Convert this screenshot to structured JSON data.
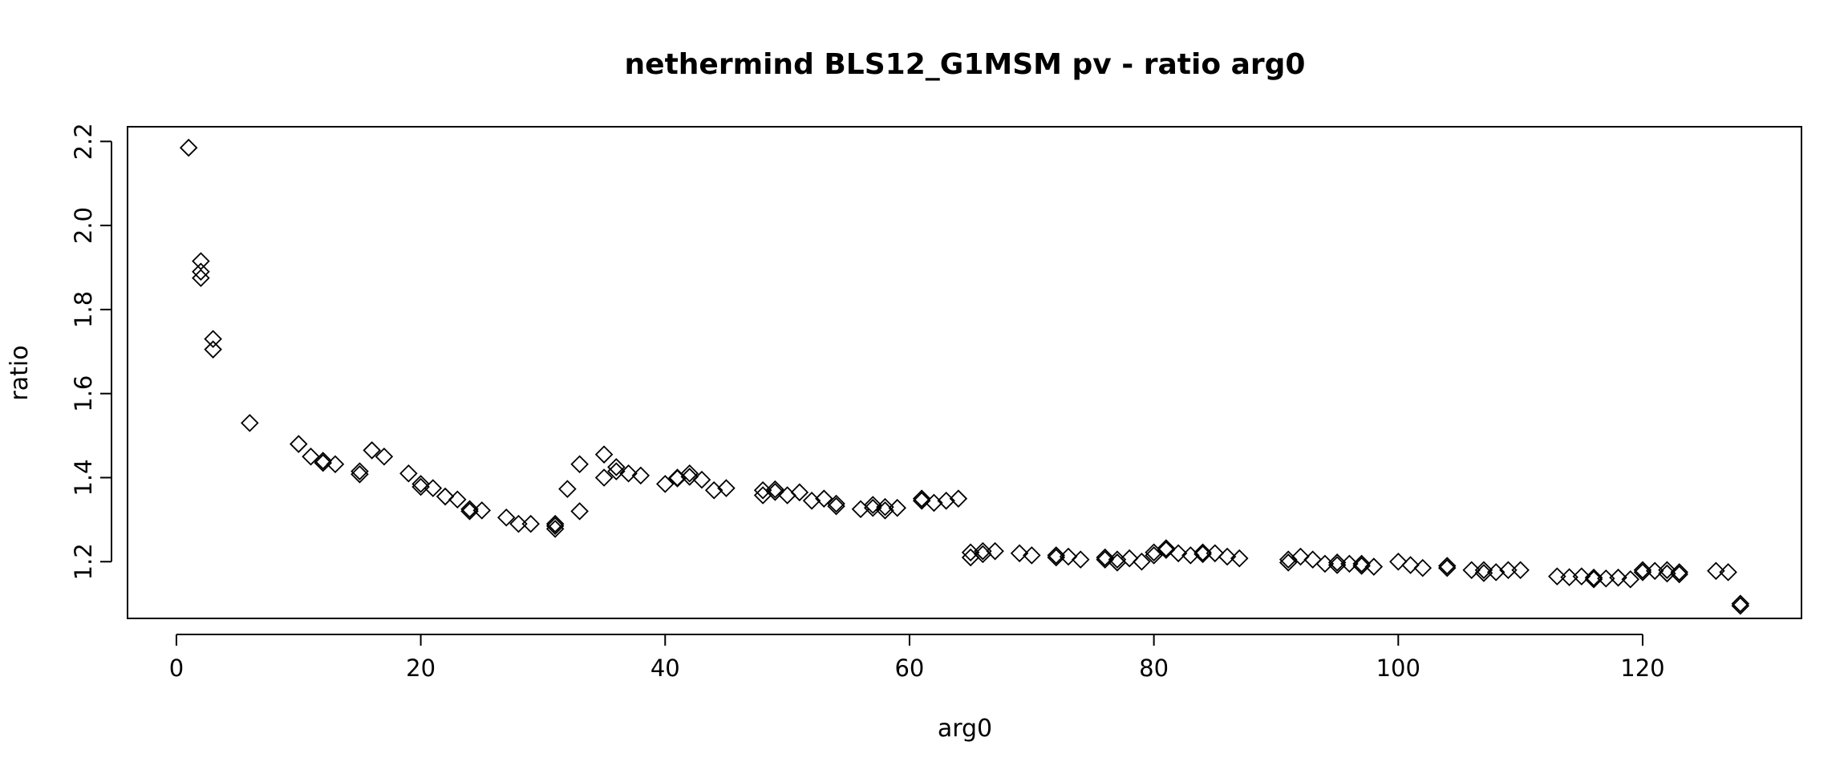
{
  "chart_data": {
    "type": "scatter",
    "title": "nethermind BLS12_G1MSM pv - ratio arg0",
    "xlabel": "arg0",
    "ylabel": "ratio",
    "xlim": [
      -4,
      133
    ],
    "ylim": [
      1.065,
      2.235
    ],
    "xticks": [
      0,
      20,
      40,
      60,
      80,
      100,
      120
    ],
    "xtick_labels": [
      "0",
      "20",
      "40",
      "60",
      "80",
      "100",
      "120"
    ],
    "yticks": [
      1.2,
      1.4,
      1.6,
      1.8,
      2.0,
      2.2
    ],
    "ytick_labels": [
      "1.2",
      "1.4",
      "1.6",
      "1.8",
      "2.0",
      "2.2"
    ],
    "grid": false,
    "legend": "none",
    "marker": "open-diamond",
    "color": "#000000",
    "series": [
      {
        "x": [
          1,
          2,
          2,
          2,
          3,
          3,
          6,
          10,
          11,
          12,
          12,
          13,
          15,
          15,
          16,
          17,
          19,
          20,
          20,
          21,
          22,
          23,
          24,
          24,
          25,
          27,
          28,
          29,
          31,
          31,
          31,
          32,
          33,
          33,
          35,
          35,
          36,
          36,
          37,
          38,
          40,
          41,
          41,
          42,
          42,
          43,
          44,
          45,
          48,
          48,
          49,
          49,
          50,
          51,
          52,
          53,
          54,
          54,
          56,
          57,
          57,
          58,
          58,
          59,
          61,
          61,
          62,
          63,
          64,
          65,
          65,
          66,
          66,
          67,
          69,
          70,
          72,
          72,
          73,
          74,
          76,
          76,
          77,
          77,
          78,
          79,
          80,
          80,
          81,
          81,
          82,
          83,
          84,
          84,
          85,
          86,
          87,
          91,
          91,
          92,
          93,
          94,
          95,
          95,
          96,
          97,
          97,
          98,
          100,
          101,
          102,
          104,
          104,
          106,
          107,
          107,
          108,
          109,
          110,
          113,
          114,
          115,
          116,
          116,
          117,
          118,
          119,
          120,
          120,
          121,
          122,
          122,
          123,
          123,
          126,
          127,
          128,
          128
        ],
        "y": [
          2.185,
          1.915,
          1.89,
          1.875,
          1.73,
          1.705,
          1.53,
          1.48,
          1.45,
          1.44,
          1.435,
          1.432,
          1.415,
          1.408,
          1.465,
          1.45,
          1.41,
          1.385,
          1.378,
          1.375,
          1.355,
          1.348,
          1.325,
          1.32,
          1.322,
          1.305,
          1.29,
          1.29,
          1.29,
          1.285,
          1.278,
          1.373,
          1.432,
          1.32,
          1.455,
          1.4,
          1.425,
          1.415,
          1.41,
          1.405,
          1.385,
          1.4,
          1.398,
          1.41,
          1.402,
          1.395,
          1.37,
          1.375,
          1.37,
          1.358,
          1.372,
          1.366,
          1.358,
          1.365,
          1.345,
          1.35,
          1.338,
          1.332,
          1.325,
          1.335,
          1.328,
          1.33,
          1.322,
          1.328,
          1.35,
          1.345,
          1.34,
          1.345,
          1.35,
          1.222,
          1.21,
          1.225,
          1.218,
          1.225,
          1.22,
          1.215,
          1.215,
          1.21,
          1.212,
          1.205,
          1.21,
          1.205,
          1.205,
          1.198,
          1.208,
          1.2,
          1.222,
          1.215,
          1.232,
          1.228,
          1.22,
          1.215,
          1.222,
          1.218,
          1.22,
          1.212,
          1.208,
          1.205,
          1.198,
          1.212,
          1.205,
          1.195,
          1.198,
          1.192,
          1.195,
          1.195,
          1.19,
          1.188,
          1.2,
          1.192,
          1.185,
          1.19,
          1.185,
          1.18,
          1.18,
          1.173,
          1.175,
          1.18,
          1.18,
          1.165,
          1.163,
          1.165,
          1.162,
          1.158,
          1.16,
          1.162,
          1.158,
          1.18,
          1.175,
          1.178,
          1.18,
          1.172,
          1.175,
          1.17,
          1.178,
          1.175,
          1.1,
          1.095
        ]
      }
    ]
  }
}
